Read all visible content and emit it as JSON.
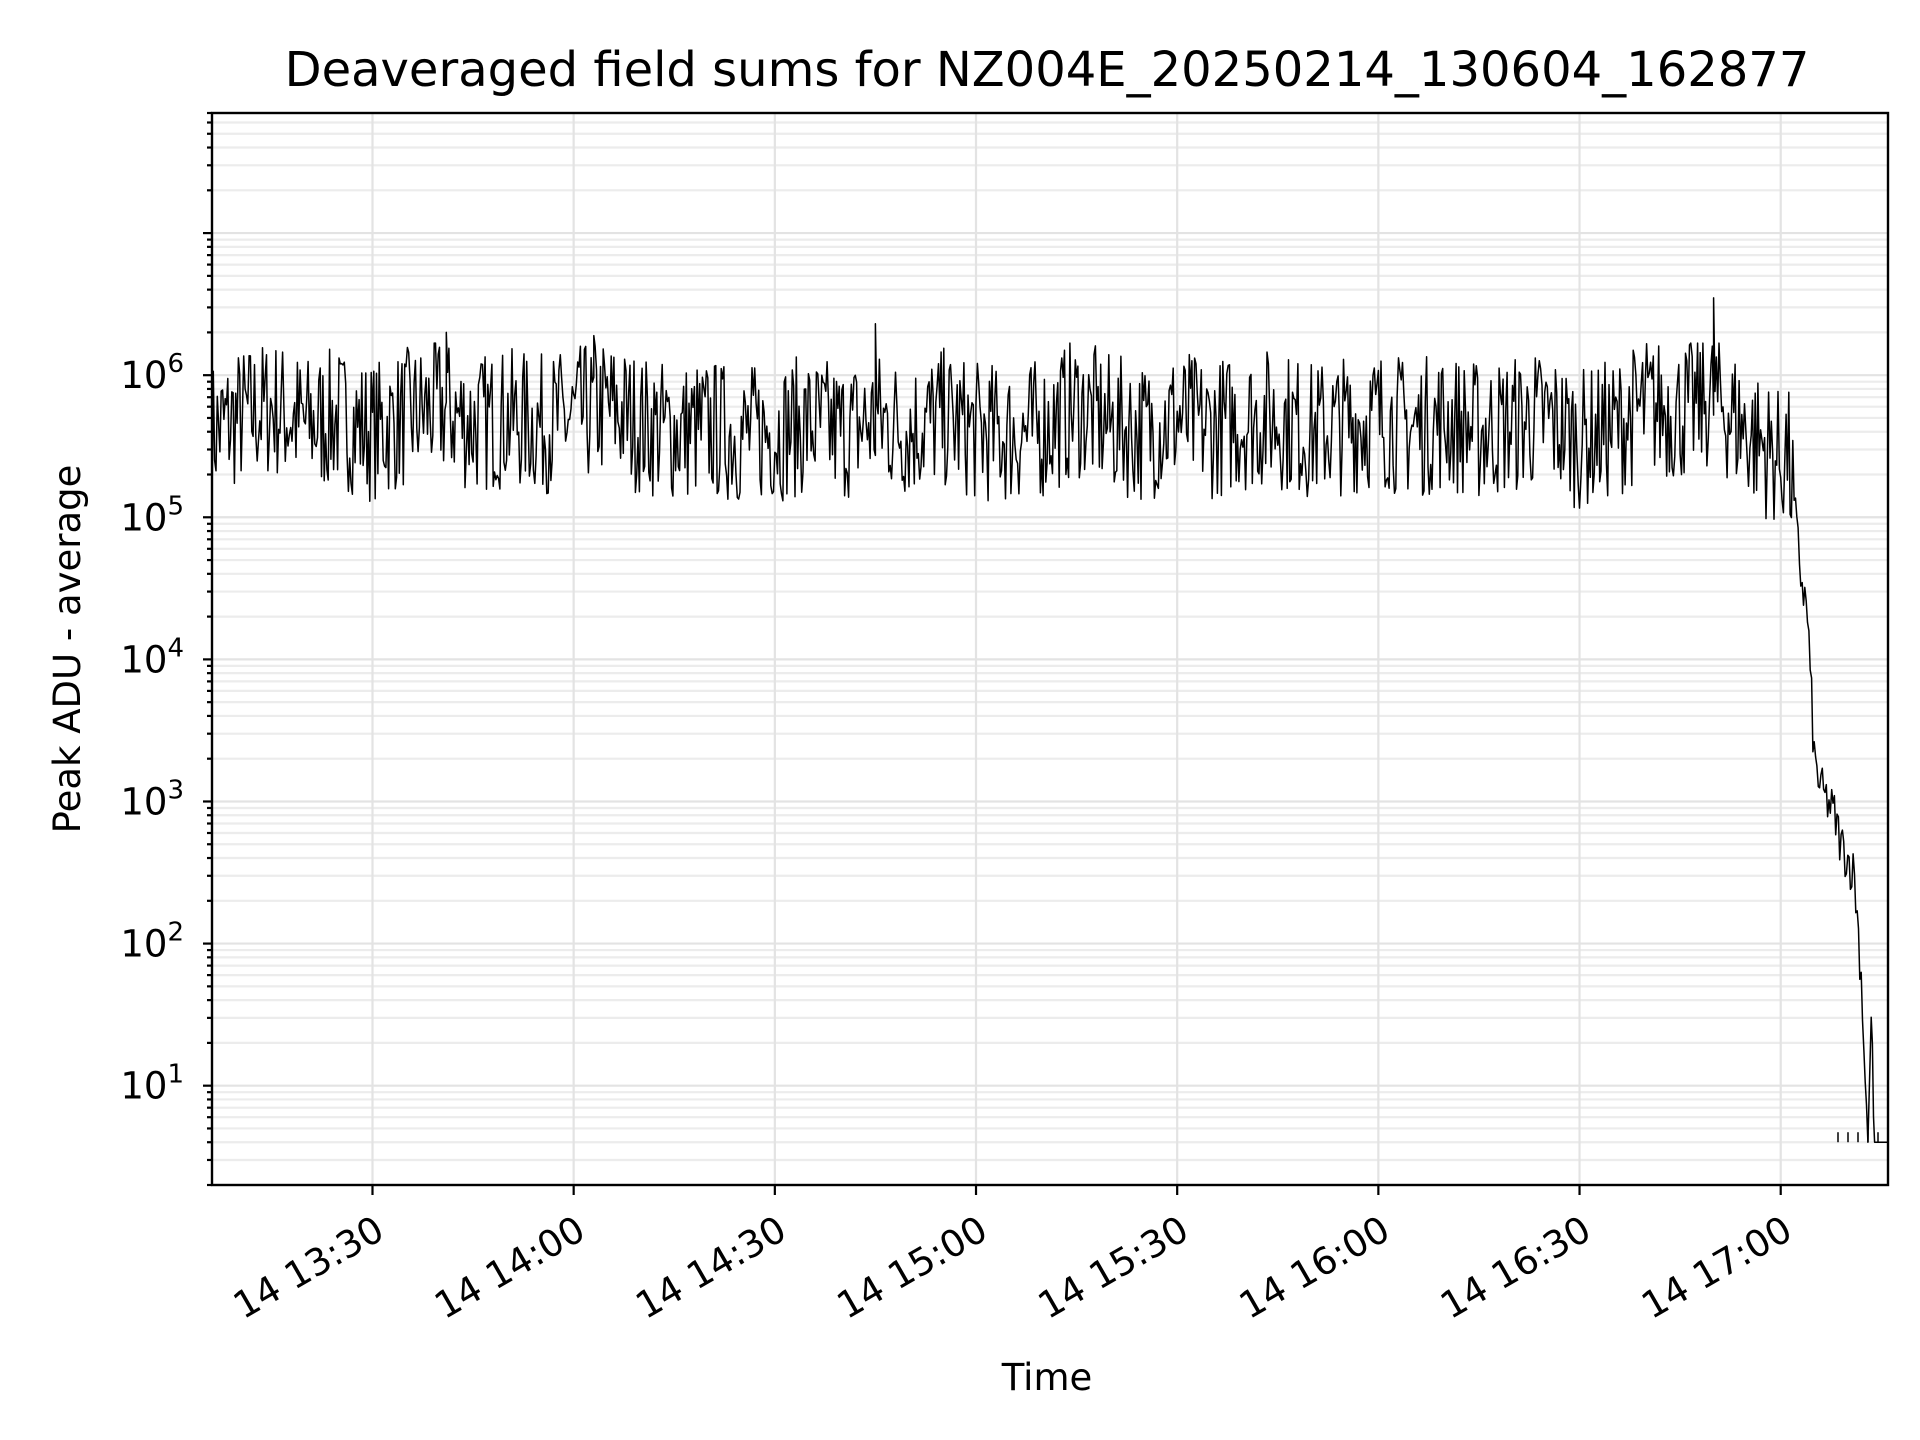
{
  "chart_data": {
    "type": "line",
    "title": "Deaveraged field sums for NZ004E_20250214_130604_162877",
    "xlabel": "Time",
    "ylabel": "Peak ADU - average",
    "yscale": "log",
    "ylim": [
      2,
      70000000
    ],
    "xlim": [
      "2025-02-14 13:06:04",
      "2025-02-14 17:16:00"
    ],
    "grid": true,
    "legend": "none",
    "line_color": "#000000",
    "x_ticks": [
      "2025-02-14 13:30",
      "2025-02-14 14:00",
      "2025-02-14 14:30",
      "2025-02-14 15:00",
      "2025-02-14 15:30",
      "2025-02-14 16:00",
      "2025-02-14 16:30",
      "2025-02-14 17:00"
    ],
    "x_tick_labels": [
      "14 13:30",
      "14 14:00",
      "14 14:30",
      "14 15:00",
      "14 15:30",
      "14 16:00",
      "14 16:30",
      "14 17:00"
    ],
    "y_ticks": [
      {
        "value": 10,
        "base": "10",
        "exp": "1"
      },
      {
        "value": 100,
        "base": "10",
        "exp": "2"
      },
      {
        "value": 1000,
        "base": "10",
        "exp": "3"
      },
      {
        "value": 10000,
        "base": "10",
        "exp": "4"
      },
      {
        "value": 100000,
        "base": "10",
        "exp": "5"
      },
      {
        "value": 1000000,
        "base": "10",
        "exp": "6"
      }
    ],
    "series": [
      {
        "x": [
          "13:06:04",
          "13:10",
          "13:15",
          "13:20",
          "13:25",
          "13:30",
          "13:35",
          "13:40",
          "13:45",
          "13:50",
          "13:55",
          "14:00",
          "14:05",
          "14:10",
          "14:15",
          "14:20",
          "14:25",
          "14:30",
          "14:35",
          "14:40",
          "14:45",
          "14:50",
          "14:55",
          "15:00",
          "15:05",
          "15:10",
          "15:15",
          "15:20",
          "15:25",
          "15:30",
          "15:35",
          "15:40",
          "15:45",
          "15:50",
          "15:55",
          "16:00",
          "16:05",
          "16:10",
          "16:15",
          "16:20",
          "16:25",
          "16:30",
          "16:35",
          "16:40",
          "16:45",
          "16:50",
          "16:55",
          "17:00",
          "17:01",
          "17:02",
          "17:03",
          "17:04",
          "17:05",
          "17:06",
          "17:07",
          "17:08",
          "17:09",
          "17:10",
          "17:11",
          "17:12",
          "17:13",
          "17:13:30",
          "17:14",
          "17:15",
          "17:16"
        ],
        "y": [
          400000,
          500000,
          600000,
          450000,
          500000,
          400000,
          500000,
          600000,
          450000,
          500000,
          450000,
          500000,
          600000,
          450000,
          400000,
          420000,
          380000,
          400000,
          450000,
          400000,
          480000,
          420000,
          500000,
          400000,
          380000,
          420000,
          600000,
          450000,
          400000,
          500000,
          420000,
          480000,
          500000,
          400000,
          450000,
          500000,
          420000,
          480000,
          400000,
          450000,
          500000,
          350000,
          420000,
          600000,
          550000,
          700000,
          400000,
          250000,
          300000,
          120000,
          40000,
          20000,
          2000,
          1200,
          1000,
          800,
          500,
          400,
          300,
          60,
          4,
          30,
          4,
          4,
          4
        ],
        "noise_band": {
          "low": 80000,
          "high": 1500000
        },
        "peaks": [
          {
            "x": "14:45",
            "y": 2300000
          },
          {
            "x": "16:50",
            "y": 3500000
          },
          {
            "x": "14:03",
            "y": 1900000
          },
          {
            "x": "13:41",
            "y": 2000000
          }
        ],
        "floor_value": 4
      }
    ]
  }
}
